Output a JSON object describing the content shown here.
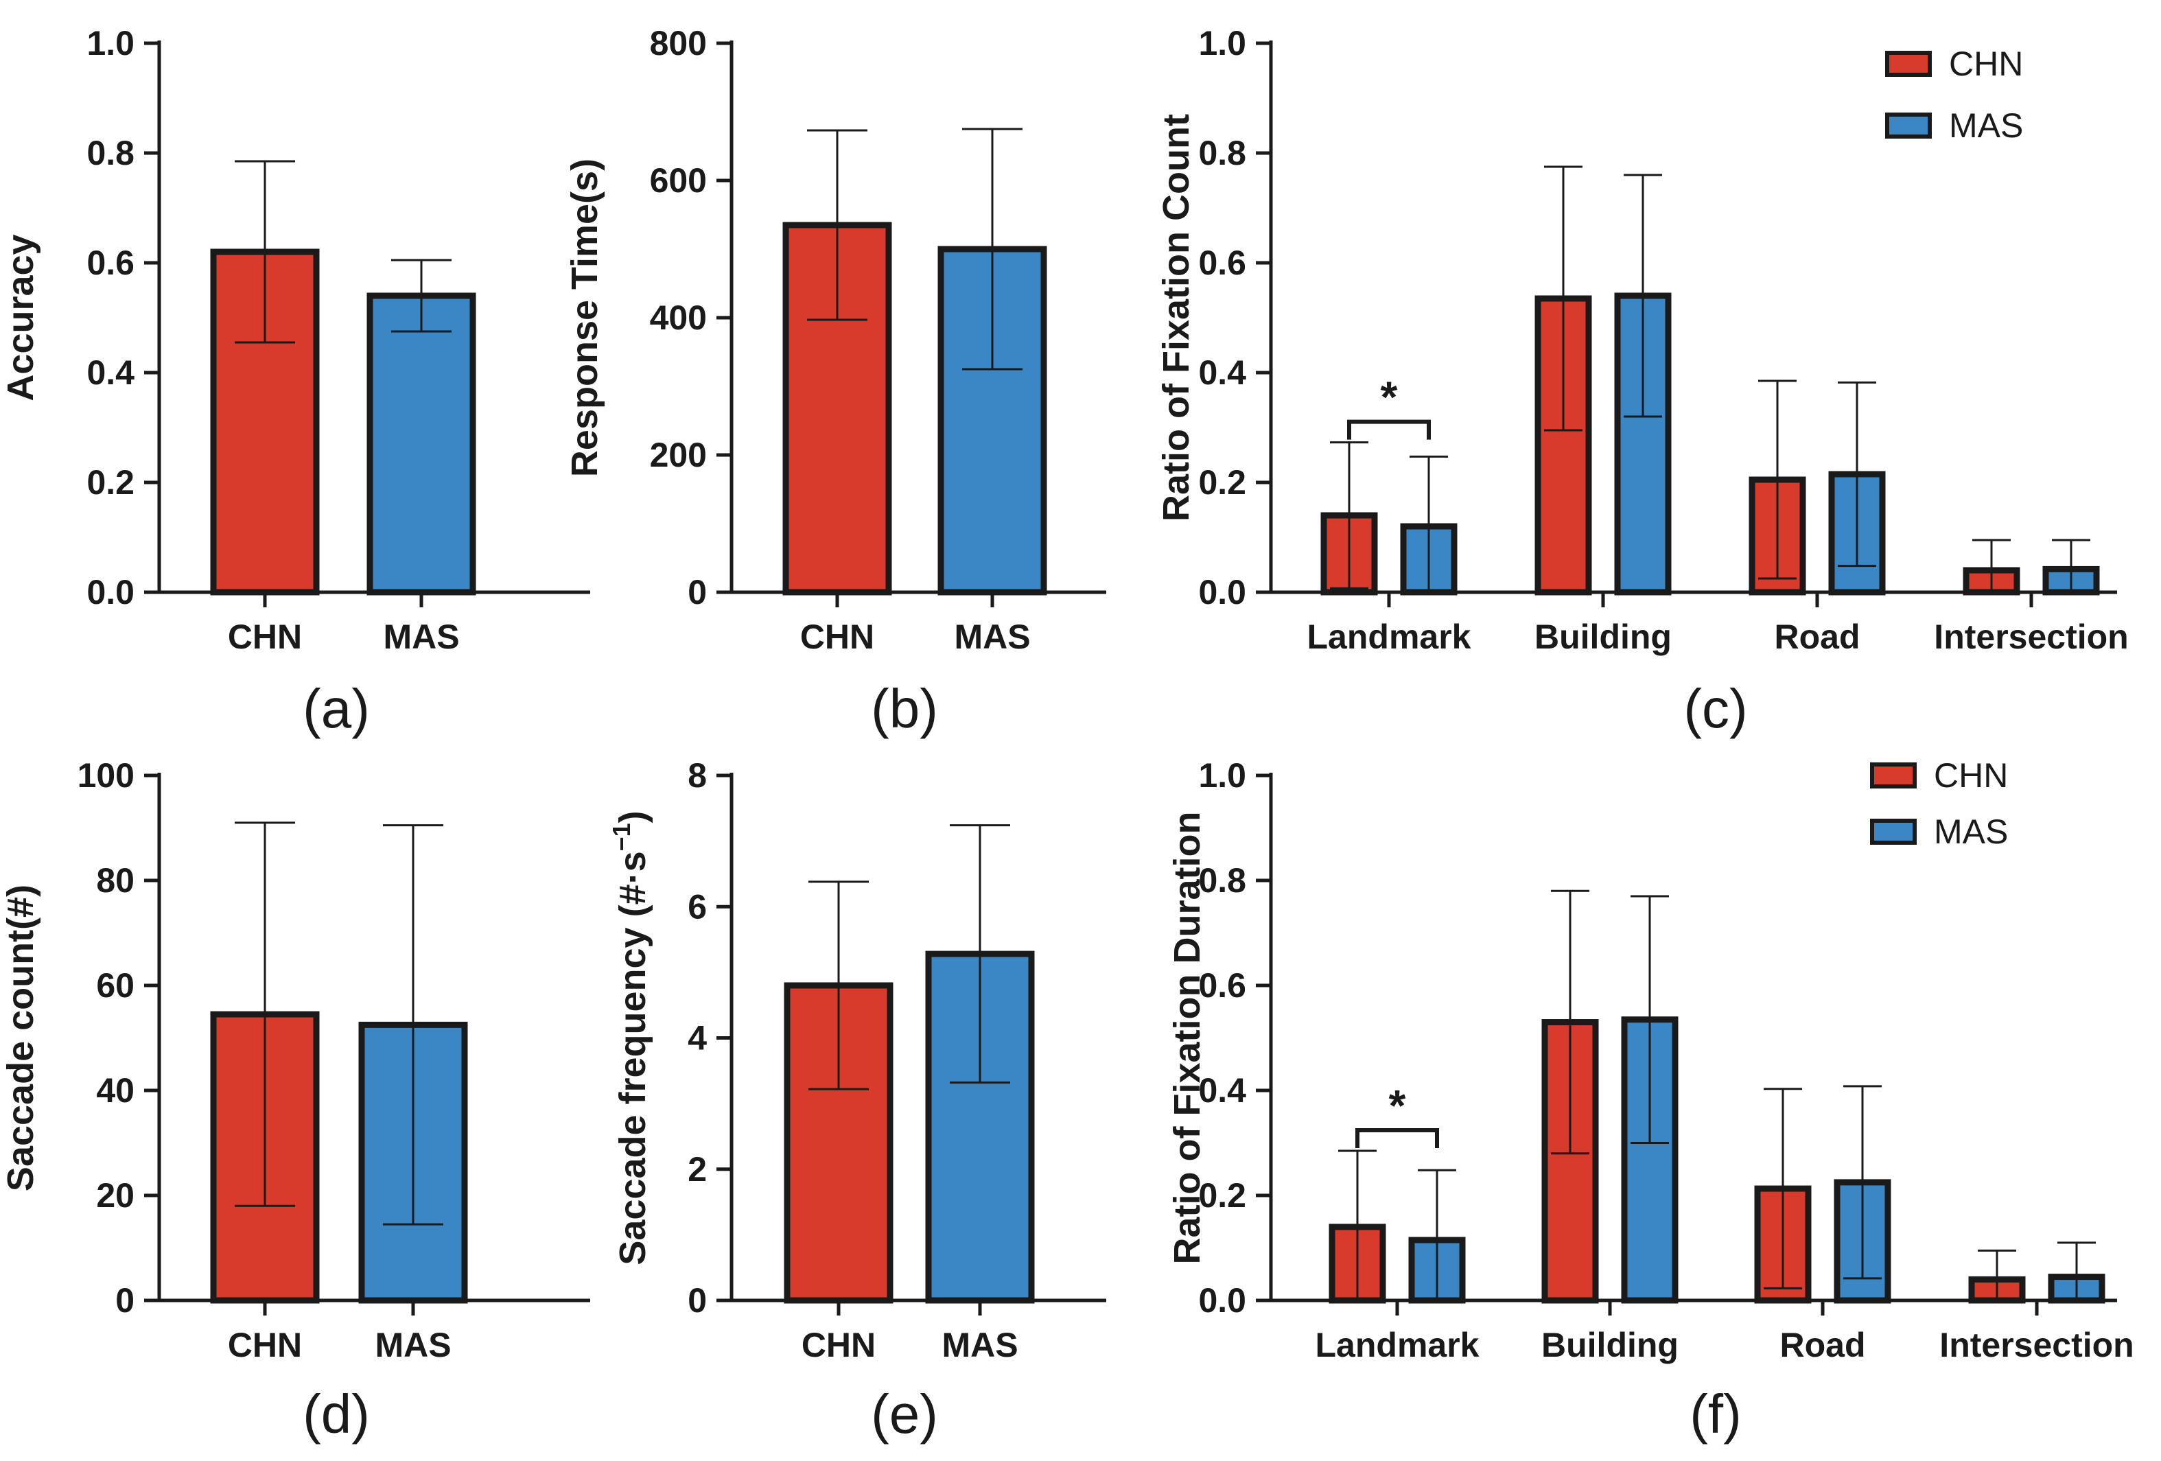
{
  "colors": {
    "CHN": "#d83a2b",
    "MAS": "#3b86c4",
    "axis": "#1a1a1a"
  },
  "chart_data": [
    {
      "type": "bar",
      "panel_label": "(a)",
      "categories": [
        "CHN",
        "MAS"
      ],
      "values": [
        0.62,
        0.54
      ],
      "errors": [
        0.165,
        0.065
      ],
      "ylabel": "Accuracy",
      "ylim": [
        0,
        1.0
      ],
      "yticks": [
        "0.0",
        "0.2",
        "0.4",
        "0.6",
        "0.8",
        "1.0"
      ]
    },
    {
      "type": "bar",
      "panel_label": "(b)",
      "categories": [
        "CHN",
        "MAS"
      ],
      "values": [
        535,
        500
      ],
      "errors": [
        138,
        175
      ],
      "ylabel": "Response Time(s)",
      "ylim": [
        0,
        800
      ],
      "yticks": [
        "0",
        "200",
        "400",
        "600",
        "800"
      ]
    },
    {
      "type": "bar",
      "panel_label": "(c)",
      "categories": [
        "Landmark",
        "Building",
        "Road",
        "Intersection"
      ],
      "series": [
        {
          "name": "CHN",
          "values": [
            0.14,
            0.535,
            0.205,
            0.04
          ],
          "errors": [
            0.133,
            0.24,
            0.18,
            0.055
          ]
        },
        {
          "name": "MAS",
          "values": [
            0.12,
            0.54,
            0.215,
            0.042
          ],
          "errors": [
            0.127,
            0.22,
            0.167,
            0.053
          ]
        }
      ],
      "ylabel": "Ratio of Fixation Count",
      "ylim": [
        0,
        1.0
      ],
      "yticks": [
        "0.0",
        "0.2",
        "0.4",
        "0.6",
        "0.8",
        "1.0"
      ],
      "significance": {
        "category": "Landmark",
        "label": "*"
      },
      "legend": "top-right"
    },
    {
      "type": "bar",
      "panel_label": "(d)",
      "categories": [
        "CHN",
        "MAS"
      ],
      "values": [
        54.5,
        52.5
      ],
      "errors": [
        36.5,
        38
      ],
      "ylabel": "Saccade count(#)",
      "ylim": [
        0,
        100
      ],
      "yticks": [
        "0",
        "20",
        "40",
        "60",
        "80",
        "100"
      ]
    },
    {
      "type": "bar",
      "panel_label": "(e)",
      "categories": [
        "CHN",
        "MAS"
      ],
      "values": [
        4.8,
        5.28
      ],
      "errors": [
        1.58,
        1.96
      ],
      "ylabel": "Saccade frequency (#·s",
      "ylabel_superscript": "−1",
      "ylabel_suffix": ")",
      "ylim": [
        0,
        8
      ],
      "yticks": [
        "0",
        "2",
        "4",
        "6",
        "8"
      ]
    },
    {
      "type": "bar",
      "panel_label": "(f)",
      "categories": [
        "Landmark",
        "Building",
        "Road",
        "Intersection"
      ],
      "series": [
        {
          "name": "CHN",
          "values": [
            0.14,
            0.53,
            0.213,
            0.04
          ],
          "errors": [
            0.145,
            0.25,
            0.19,
            0.055
          ]
        },
        {
          "name": "MAS",
          "values": [
            0.115,
            0.535,
            0.225,
            0.045
          ],
          "errors": [
            0.133,
            0.235,
            0.183,
            0.065
          ]
        }
      ],
      "ylabel": "Ratio of Fixation Duration",
      "ylim": [
        0,
        1.0
      ],
      "yticks": [
        "0.0",
        "0.2",
        "0.4",
        "0.6",
        "0.8",
        "1.0"
      ],
      "significance": {
        "category": "Landmark",
        "label": "*"
      },
      "legend": "top-right"
    }
  ]
}
